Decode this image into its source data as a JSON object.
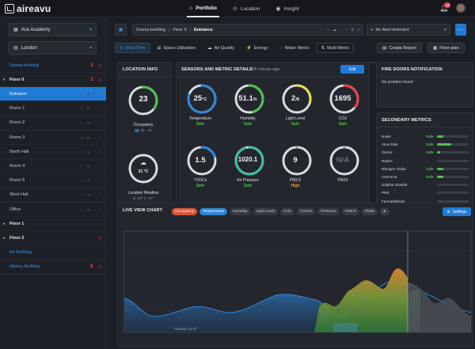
{
  "app": {
    "logo": "aireavu"
  },
  "topnav": [
    {
      "label": "Portfolio",
      "icon": "portfolio-icon",
      "active": true
    },
    {
      "label": "Location",
      "icon": "location-pin-icon",
      "active": false
    },
    {
      "label": "Insight",
      "icon": "eye-icon",
      "active": false
    }
  ],
  "notifications": {
    "count": "14"
  },
  "sidebar": {
    "academy": "Ace Academy",
    "city": "London",
    "tree": [
      {
        "label": "Drama building",
        "style": "link",
        "chev": "",
        "count": "2",
        "warn": true
      },
      {
        "label": "Floor 0",
        "style": "bold",
        "chev": "▾",
        "count": "2",
        "warn": true
      },
      {
        "label": "Entrance",
        "style": "selected",
        "chev": "",
        "count": "",
        "warn": false
      },
      {
        "label": "Room 1",
        "style": "",
        "chev": "",
        "count": "",
        "warn": false,
        "hi": true
      },
      {
        "label": "Room 2",
        "style": "",
        "chev": "",
        "count": "",
        "warn": false
      },
      {
        "label": "Room 3",
        "style": "",
        "chev": "",
        "count": "",
        "warn": false,
        "hi": true
      },
      {
        "label": "North Hall",
        "style": "",
        "chev": "",
        "count": "",
        "warn": false
      },
      {
        "label": "Room 4",
        "style": "",
        "chev": "",
        "count": "",
        "warn": false
      },
      {
        "label": "Room 5",
        "style": "",
        "chev": "",
        "count": "",
        "warn": false
      },
      {
        "label": "West Hall",
        "style": "",
        "chev": "",
        "count": "",
        "warn": false
      },
      {
        "label": "Office",
        "style": "",
        "chev": "",
        "count": "",
        "warn": false
      },
      {
        "label": "Floor 1",
        "style": "bold",
        "chev": "▸",
        "count": "",
        "warn": false
      },
      {
        "label": "Floor 2",
        "style": "bold",
        "chev": "▸",
        "count": "",
        "warn": true
      },
      {
        "label": "Art Building",
        "style": "link",
        "chev": "",
        "count": "",
        "warn": false
      },
      {
        "label": "History Building",
        "style": "link",
        "chev": "",
        "count": "8",
        "warn": true
      }
    ]
  },
  "breadcrumb": {
    "parts": [
      "Drama building",
      "Floor 0"
    ],
    "current": "Entrance"
  },
  "alert_select": "No Alert detected",
  "tabs": [
    {
      "label": "Real Time",
      "icon": "◷",
      "active": true
    },
    {
      "label": "Space Utilisation",
      "icon": "⊞",
      "active": false
    },
    {
      "label": "Air Quality",
      "icon": "☁",
      "active": false
    },
    {
      "label": "Energy",
      "icon": "⚡",
      "active": false
    },
    {
      "label": "Water Metric",
      "icon": "◌",
      "active": false
    },
    {
      "label": "Multi Metric",
      "icon": "⇅",
      "active": false,
      "boxed": true
    }
  ],
  "actions": {
    "create_report": "Create Report",
    "floor_plan": "Floor plan"
  },
  "location_info": {
    "title": "LOCATION INFO",
    "occupancy_value": "23",
    "occupancy_label": "Occupancy",
    "occupancy_range": "👥 15 - 47",
    "weather_temp": "21 °C",
    "weather_label": "Location Weather",
    "weather_range": "H: 24° L: 17°"
  },
  "sensors": {
    "title": "SENSORS AND METRIC DETAILS",
    "time_ago": "2:36 minute ago",
    "edit": "Edit",
    "items": [
      {
        "value": "25",
        "unit": "°C",
        "label": "Temperature",
        "status": "Safe",
        "level": "safe",
        "color": "#2f86d8",
        "frac": 0.8
      },
      {
        "value": "51.1",
        "unit": "%",
        "label": "Humidity",
        "status": "Safe",
        "level": "safe",
        "color": "#4cc04c",
        "frac": 0.45
      },
      {
        "value": "2",
        "unit": "/8",
        "label": "Light Level",
        "status": "Safe",
        "level": "safe",
        "color": "#e8e04a",
        "frac": 0.3
      },
      {
        "value": "1695",
        "unit": "",
        "label": "CO2",
        "status": "Safe",
        "level": "safe",
        "color": "#e8424b",
        "frac": 0.35
      },
      {
        "value": "1.5",
        "unit": "",
        "label": "TVOCs",
        "status": "Safe",
        "level": "safe",
        "color": "#2f86d8",
        "frac": 0.2
      },
      {
        "value": "1020.1",
        "unit": "",
        "label": "Air Pressure",
        "status": "Safe",
        "level": "safe",
        "color": "#3cc0a0",
        "frac": 0.95
      },
      {
        "value": "9",
        "unit": "",
        "label": "PM2.5",
        "status": "High",
        "level": "high",
        "color": "#9aa0aa",
        "frac": 0.0
      },
      {
        "value": "N/A",
        "unit": "",
        "label": "PM10",
        "status": "",
        "level": "",
        "color": "#9aa0aa",
        "frac": 0.0
      }
    ]
  },
  "fire_doors": {
    "title": "FIRE DOORS NOTIFICATION",
    "text": "No problem found"
  },
  "secondary": {
    "title": "SECONDARY METRICS",
    "items": [
      {
        "label": "Noise",
        "status": "Safe",
        "fill": 0.2
      },
      {
        "label": "Virus Risk",
        "status": "Safe",
        "fill": 0.45
      },
      {
        "label": "Ozone",
        "status": "Safe",
        "fill": 0.1
      },
      {
        "label": "Radon",
        "status": "",
        "fill": 0
      },
      {
        "label": "Nitrogen Oxide",
        "status": "Safe",
        "fill": 0.2
      },
      {
        "label": "Ammonia",
        "status": "Safe",
        "fill": 0.2
      },
      {
        "label": "Sulphur Dioxide",
        "status": "",
        "fill": 0
      },
      {
        "label": "PM4",
        "status": "",
        "fill": 0
      },
      {
        "label": "Formaldehyde",
        "status": "",
        "fill": 0
      }
    ]
  },
  "live_chart": {
    "title": "LIVE VIEW CHART",
    "chips": [
      "Occupancy",
      "Temperature",
      "Humidity",
      "Light Level",
      "CO2",
      "TVOCs",
      "Pressure",
      "PM2.5",
      "PM10"
    ],
    "settings": "Settings",
    "date_label": "Tuesday 21.07"
  },
  "colors": {
    "accent": "#1f7bd6",
    "safe": "#4cc04c",
    "warn": "#e8424b",
    "high": "#f0a030"
  }
}
